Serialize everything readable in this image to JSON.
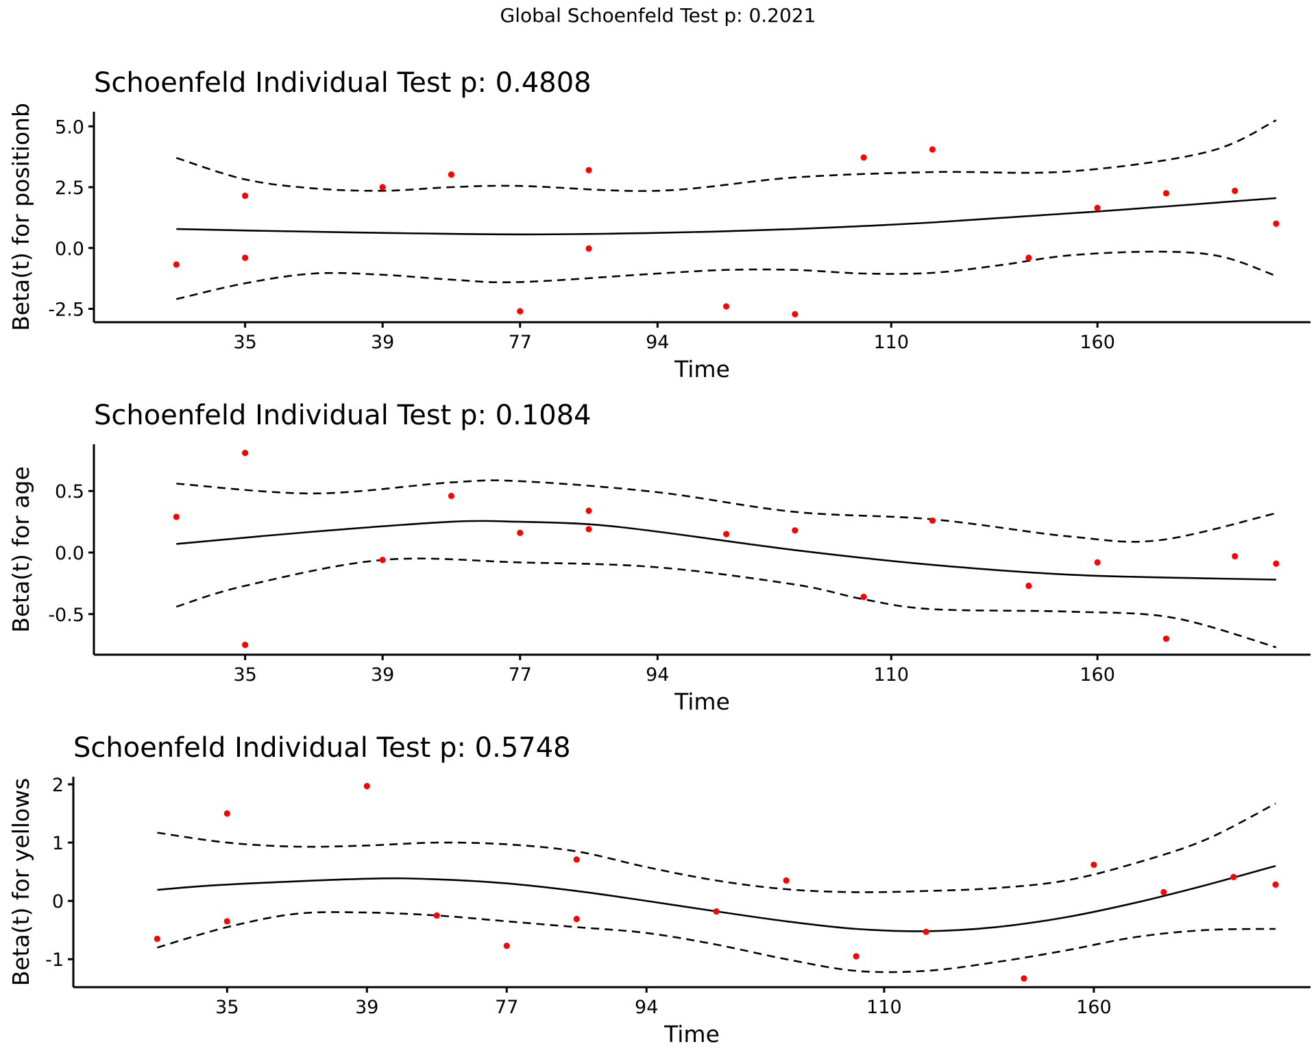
{
  "chart_data": {
    "type": "scatter",
    "title": "Global Schoenfeld Test p: 0.2021",
    "panels": [
      {
        "title": "Schoenfeld Individual Test p: 0.4808",
        "ylabel": "Beta(t) for positionb",
        "xlabel": "Time",
        "x_tick_labels": [
          "35",
          "39",
          "77",
          "94",
          "110",
          "160"
        ],
        "x_tick_ranks": [
          2,
          4,
          6,
          8,
          11.4,
          14.4
        ],
        "x_range": [
          -0.2,
          17.5
        ],
        "y_ticks": [
          -2.5,
          0.0,
          2.5,
          5.0
        ],
        "y_tick_labels": [
          "-2.5",
          "0.0",
          "2.5",
          "5.0"
        ],
        "ylim": [
          -3.05,
          5.6
        ],
        "grid": false,
        "points": {
          "x": [
            1,
            2,
            2,
            4,
            5,
            6,
            7,
            7,
            9,
            10,
            11,
            12,
            13.4,
            14.4,
            15.4,
            16.4,
            17
          ],
          "y": [
            -0.68,
            2.15,
            -0.4,
            2.5,
            3.02,
            -2.6,
            3.2,
            -0.02,
            -2.4,
            -2.72,
            3.72,
            4.05,
            -0.4,
            1.65,
            2.25,
            2.35,
            1.0
          ]
        },
        "fit": {
          "x": [
            1,
            2,
            4,
            6,
            8,
            10,
            12,
            14.4,
            17
          ],
          "y": [
            0.78,
            0.72,
            0.62,
            0.56,
            0.62,
            0.78,
            1.05,
            1.5,
            2.05
          ]
        },
        "upper": {
          "x": [
            1,
            2,
            3,
            4,
            5,
            6,
            8,
            10,
            12,
            14,
            16,
            17
          ],
          "y": [
            3.7,
            2.82,
            2.45,
            2.35,
            2.5,
            2.55,
            2.35,
            2.9,
            3.12,
            3.15,
            3.95,
            5.25
          ]
        },
        "lower": {
          "x": [
            1,
            2,
            3,
            4,
            5,
            6,
            8,
            9,
            10,
            11,
            12,
            13,
            14,
            15.3,
            16.2,
            17
          ],
          "y": [
            -2.1,
            -1.45,
            -1.05,
            -1.1,
            -1.3,
            -1.4,
            -1.05,
            -0.9,
            -0.9,
            -1.05,
            -1.02,
            -0.7,
            -0.3,
            -0.15,
            -0.35,
            -1.15
          ]
        }
      },
      {
        "title": "Schoenfeld Individual Test p: 0.1084",
        "ylabel": "Beta(t) for age",
        "xlabel": "Time",
        "x_tick_labels": [
          "35",
          "39",
          "77",
          "94",
          "110",
          "160"
        ],
        "x_tick_ranks": [
          2,
          4,
          6,
          8,
          11.4,
          14.4
        ],
        "x_range": [
          -0.2,
          17.5
        ],
        "y_ticks": [
          -0.5,
          0.0,
          0.5
        ],
        "y_tick_labels": [
          "-0.5",
          "0.0",
          "0.5"
        ],
        "ylim": [
          -0.83,
          0.88
        ],
        "grid": false,
        "points": {
          "x": [
            1,
            2,
            2,
            4,
            5,
            6,
            7,
            7,
            9,
            10,
            11,
            12,
            13.4,
            14.4,
            15.4,
            16.4,
            17
          ],
          "y": [
            0.29,
            0.81,
            -0.75,
            -0.06,
            0.46,
            0.16,
            0.34,
            0.19,
            0.15,
            0.18,
            -0.36,
            0.26,
            -0.27,
            -0.08,
            -0.7,
            -0.03,
            -0.09
          ]
        },
        "fit": {
          "x": [
            1,
            3,
            5,
            6,
            7,
            8,
            10,
            12,
            14,
            16,
            17
          ],
          "y": [
            0.07,
            0.17,
            0.25,
            0.25,
            0.23,
            0.17,
            0.02,
            -0.1,
            -0.18,
            -0.21,
            -0.22
          ]
        },
        "upper": {
          "x": [
            1,
            3,
            5,
            6,
            8,
            10,
            12,
            14,
            15.3,
            17
          ],
          "y": [
            0.56,
            0.48,
            0.57,
            0.58,
            0.49,
            0.33,
            0.27,
            0.13,
            0.1,
            0.32
          ]
        },
        "lower": {
          "x": [
            1,
            2,
            4,
            6,
            8,
            10,
            11,
            12,
            14,
            15.5,
            17
          ],
          "y": [
            -0.44,
            -0.27,
            -0.06,
            -0.08,
            -0.12,
            -0.26,
            -0.38,
            -0.46,
            -0.48,
            -0.53,
            -0.77
          ]
        }
      },
      {
        "title": "Schoenfeld Individual Test p: 0.5748",
        "ylabel": "Beta(t) for yellows",
        "xlabel": "Time",
        "x_tick_labels": [
          "35",
          "39",
          "77",
          "94",
          "110",
          "160"
        ],
        "x_tick_ranks": [
          2,
          4,
          6,
          8,
          11.4,
          14.4
        ],
        "x_range": [
          -0.2,
          17.5
        ],
        "y_ticks": [
          -1,
          0,
          1,
          2
        ],
        "y_tick_labels": [
          "-1",
          "0",
          "1",
          "2"
        ],
        "ylim": [
          -1.48,
          2.13
        ],
        "grid": false,
        "points": {
          "x": [
            1,
            2,
            2,
            4,
            5,
            6,
            7,
            7,
            9,
            10,
            11,
            12,
            13.4,
            14.4,
            15.4,
            16.4,
            17
          ],
          "y": [
            -0.65,
            1.5,
            -0.35,
            1.97,
            -0.25,
            -0.77,
            0.71,
            -0.31,
            -0.18,
            0.35,
            -0.95,
            -0.53,
            -1.33,
            0.62,
            0.15,
            0.41,
            0.28
          ]
        },
        "fit": {
          "x": [
            1,
            2,
            4,
            5,
            6,
            7,
            8,
            9,
            10,
            11,
            12,
            13,
            14,
            15,
            16,
            17
          ],
          "y": [
            0.19,
            0.28,
            0.38,
            0.37,
            0.3,
            0.17,
            0.0,
            -0.18,
            -0.35,
            -0.48,
            -0.52,
            -0.45,
            -0.28,
            -0.03,
            0.27,
            0.6
          ]
        },
        "upper": {
          "x": [
            1,
            2,
            3,
            4,
            5,
            6,
            7,
            8,
            9,
            10,
            11,
            12,
            13,
            14,
            15,
            16,
            17
          ],
          "y": [
            1.17,
            1.0,
            0.93,
            0.95,
            1.0,
            0.97,
            0.85,
            0.58,
            0.35,
            0.2,
            0.15,
            0.17,
            0.22,
            0.35,
            0.65,
            1.05,
            1.67
          ]
        },
        "lower": {
          "x": [
            1,
            2,
            3,
            4,
            5,
            6,
            7,
            8,
            9,
            10,
            11,
            12,
            13,
            14,
            15,
            16,
            17
          ],
          "y": [
            -0.8,
            -0.45,
            -0.22,
            -0.2,
            -0.25,
            -0.35,
            -0.45,
            -0.55,
            -0.75,
            -1.0,
            -1.2,
            -1.2,
            -1.05,
            -0.85,
            -0.62,
            -0.5,
            -0.48
          ]
        }
      }
    ],
    "colors": {
      "points": "#ff0000",
      "lines": "#000000"
    }
  }
}
